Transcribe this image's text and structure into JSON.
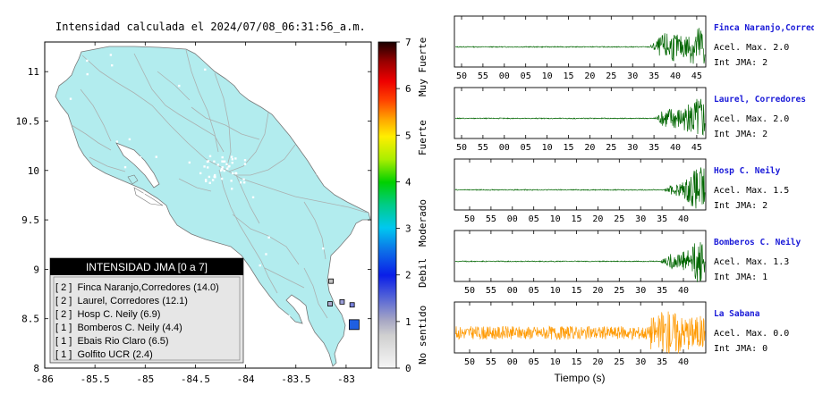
{
  "map": {
    "title": "Intensidad calculada el 2024/07/08_06:31:56_a.m.",
    "x_ticks": [
      "-86",
      "-85.5",
      "-85",
      "-84.5",
      "-84",
      "-83.5",
      "-83"
    ],
    "x_tick_values": [
      -86,
      -85.5,
      -85,
      -84.5,
      -84,
      -83.5,
      -83
    ],
    "y_ticks": [
      "8",
      "8.5",
      "9",
      "9.5",
      "10",
      "10.5",
      "11"
    ],
    "y_tick_values": [
      8,
      8.5,
      9,
      9.5,
      10,
      10.5,
      11
    ],
    "xlim": [
      -86,
      -82.75
    ],
    "ylim": [
      8,
      11.3
    ],
    "land_color": "#b2ecee",
    "legend": {
      "title": "INTENSIDAD JMA [0 a 7]",
      "entries": [
        "[ 2 ]  Finca Naranjo,Corredores (14.0)",
        "[ 2 ]  Laurel, Corredores (12.1)",
        "[ 2 ]  Hosp C. Neily (6.9)",
        "[ 1 ]  Bomberos C. Neily (4.4)",
        "[ 1 ]  Ebais Rio Claro (6.5)",
        "[ 1 ]  Golfito UCR (2.4)"
      ]
    },
    "stations": [
      {
        "lon": -82.92,
        "lat": 8.44,
        "intensity": 2,
        "color": "#1f5fe0"
      },
      {
        "lon": -82.94,
        "lat": 8.64,
        "intensity": 1,
        "color": "#7a83dd"
      },
      {
        "lon": -83.04,
        "lat": 8.67,
        "intensity": 1,
        "color": "#9a9ed8"
      },
      {
        "lon": -83.16,
        "lat": 8.65,
        "intensity": 1,
        "color": "#aaaacc"
      },
      {
        "lon": -83.15,
        "lat": 8.88,
        "intensity": 1,
        "color": "#c2c2c2"
      }
    ]
  },
  "colorbar": {
    "ticks": [
      "0",
      "1",
      "2",
      "3",
      "4",
      "5",
      "6",
      "7"
    ],
    "labels": [
      "No sentido",
      "Debil",
      "Moderado",
      "Fuerte",
      "Muy Fuerte"
    ],
    "colors": [
      "#f4f4f4",
      "#b8b8b8",
      "#2233cc",
      "#00bbee",
      "#11cc22",
      "#eeee00",
      "#ee2222",
      "#1a0000"
    ]
  },
  "chart_data": {
    "type": "line",
    "xlabel": "Tiempo (s)",
    "x_tick_labels": [
      "50",
      "55",
      "00",
      "05",
      "10",
      "15",
      "20",
      "25",
      "30",
      "35",
      "40",
      "45"
    ],
    "series": [
      {
        "name": "Finca Naranjo,Corredores",
        "acel_label": "Acel. Max. 2.0",
        "int_label": "Int JMA: 2",
        "color": "#006600",
        "onset": 34.8,
        "pre": 0.02,
        "amp": 0.95,
        "tick_start": 50
      },
      {
        "name": "Laurel, Corredores",
        "acel_label": "Acel. Max. 2.0",
        "int_label": "Int JMA: 2",
        "color": "#006600",
        "onset": 36.0,
        "pre": 0.02,
        "amp": 0.95,
        "tick_start": 50
      },
      {
        "name": "Hosp C. Neily",
        "acel_label": "Acel. Max. 1.5",
        "int_label": "Int JMA: 2",
        "color": "#006600",
        "onset": 38.5,
        "pre": 0.02,
        "amp": 0.95,
        "tick_start": 50
      },
      {
        "name": "Bomberos C. Neily",
        "acel_label": "Acel. Max. 1.3",
        "int_label": "Int JMA: 1",
        "color": "#006600",
        "onset": 37.5,
        "pre": 0.02,
        "amp": 0.95,
        "tick_start": 50
      },
      {
        "name": "La Sabana",
        "acel_label": "Acel. Max. 0.0",
        "int_label": "Int JMA: 0",
        "color": "#ff9900",
        "onset": 34.0,
        "pre": 0.28,
        "amp": 0.9,
        "tick_start": 50
      }
    ]
  }
}
